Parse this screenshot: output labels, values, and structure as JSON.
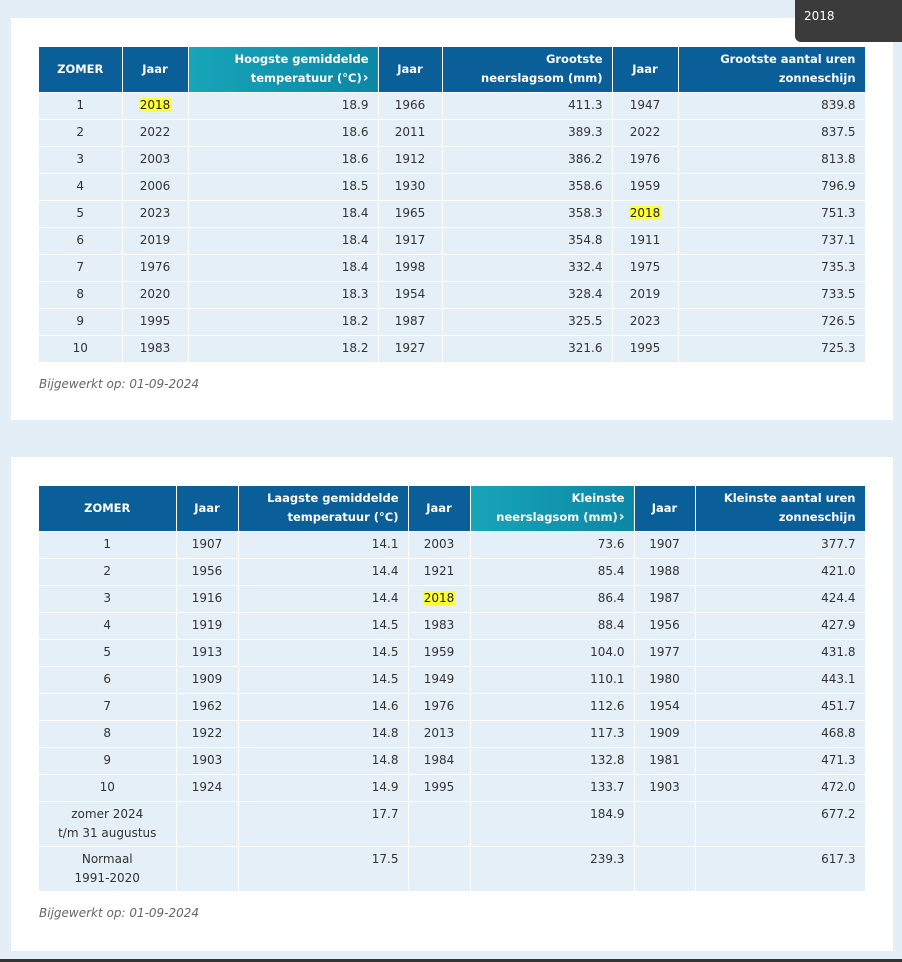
{
  "tooltip": "2018",
  "tables": [
    {
      "columns": [
        "ZOMER",
        "Jaar",
        "Hoogste gemiddelde\ntemperatuur (°C)",
        "Jaar",
        "Grootste\nneerslagsom (mm)",
        "Jaar",
        "Grootste aantal uren\nzonneschijn"
      ],
      "sorted_column": 2,
      "rows": [
        [
          "1",
          {
            "text": "2018",
            "highlight": true
          },
          "18.9",
          "1966",
          "411.3",
          "1947",
          "839.8"
        ],
        [
          "2",
          "2022",
          "18.6",
          "2011",
          "389.3",
          "2022",
          "837.5"
        ],
        [
          "3",
          "2003",
          "18.6",
          "1912",
          "386.2",
          "1976",
          "813.8"
        ],
        [
          "4",
          "2006",
          "18.5",
          "1930",
          "358.6",
          "1959",
          "796.9"
        ],
        [
          "5",
          "2023",
          "18.4",
          "1965",
          "358.3",
          {
            "text": "2018",
            "highlight": true
          },
          "751.3"
        ],
        [
          "6",
          "2019",
          "18.4",
          "1917",
          "354.8",
          "1911",
          "737.1"
        ],
        [
          "7",
          "1976",
          "18.4",
          "1998",
          "332.4",
          "1975",
          "735.3"
        ],
        [
          "8",
          "2020",
          "18.3",
          "1954",
          "328.4",
          "2019",
          "733.5"
        ],
        [
          "9",
          "1995",
          "18.2",
          "1987",
          "325.5",
          "2023",
          "726.5"
        ],
        [
          "10",
          "1983",
          "18.2",
          "1927",
          "321.6",
          "1995",
          "725.3"
        ]
      ],
      "footnote": "Bijgewerkt op: 01-09-2024"
    },
    {
      "columns": [
        "ZOMER",
        "Jaar",
        "Laagste gemiddelde\ntemperatuur (°C)",
        "Jaar",
        "Kleinste\nneerslagsom (mm)",
        "Jaar",
        "Kleinste aantal uren\nzonneschijn"
      ],
      "sorted_column": 4,
      "rows": [
        [
          "1",
          "1907",
          "14.1",
          "2003",
          "73.6",
          "1907",
          "377.7"
        ],
        [
          "2",
          "1956",
          "14.4",
          "1921",
          "85.4",
          "1988",
          "421.0"
        ],
        [
          "3",
          "1916",
          "14.4",
          {
            "text": "2018",
            "highlight": true
          },
          "86.4",
          "1987",
          "424.4"
        ],
        [
          "4",
          "1919",
          "14.5",
          "1983",
          "88.4",
          "1956",
          "427.9"
        ],
        [
          "5",
          "1913",
          "14.5",
          "1959",
          "104.0",
          "1977",
          "431.8"
        ],
        [
          "6",
          "1909",
          "14.5",
          "1949",
          "110.1",
          "1980",
          "443.1"
        ],
        [
          "7",
          "1962",
          "14.6",
          "1976",
          "112.6",
          "1954",
          "451.7"
        ],
        [
          "8",
          "1922",
          "14.8",
          "2013",
          "117.3",
          "1909",
          "468.8"
        ],
        [
          "9",
          "1903",
          "14.8",
          "1984",
          "132.8",
          "1981",
          "471.3"
        ],
        [
          "10",
          "1924",
          "14.9",
          "1995",
          "133.7",
          "1903",
          "472.0"
        ],
        [
          "zomer 2024\nt/m 31 augustus",
          "",
          "17.7",
          "",
          "184.9",
          "",
          "677.2"
        ],
        [
          "Normaal\n1991-2020",
          "",
          "17.5",
          "",
          "239.3",
          "",
          "617.3"
        ]
      ],
      "footnote": "Bijgewerkt op: 01-09-2024"
    }
  ]
}
